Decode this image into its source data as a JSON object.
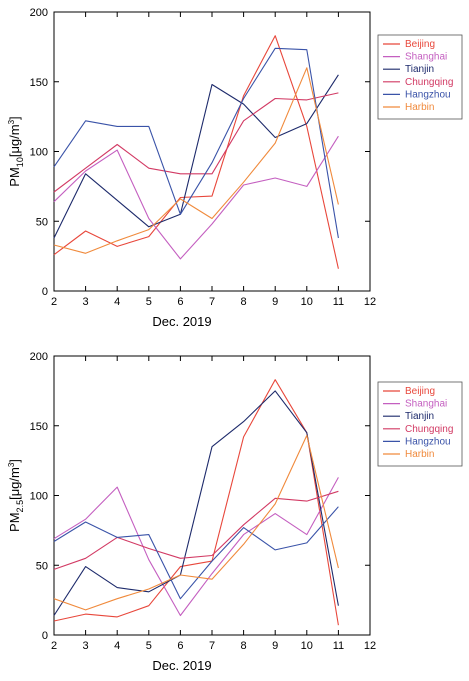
{
  "chart_data": [
    {
      "type": "line",
      "title": "",
      "ylabel_main": "PM",
      "ylabel_sub": "10",
      "ylabel_unit": "[μg/m",
      "ylabel_sup": "3",
      "ylabel_end": "]",
      "xlabel": "Dec. 2019",
      "xlim": [
        2,
        12
      ],
      "ylim": [
        0,
        200
      ],
      "xticks": [
        2,
        3,
        4,
        5,
        6,
        7,
        8,
        9,
        10,
        11,
        12
      ],
      "yticks": [
        0,
        50,
        100,
        150,
        200
      ],
      "grid": false,
      "legend_position": "right",
      "x": [
        2,
        3,
        4,
        5,
        6,
        7,
        8,
        9,
        10,
        11
      ],
      "series": [
        {
          "name": "Beijing",
          "color": "#e8473b",
          "values": [
            26,
            43,
            32,
            39,
            67,
            68,
            140,
            183,
            118,
            16
          ]
        },
        {
          "name": "Shanghai",
          "color": "#c45fc0",
          "values": [
            64,
            86,
            101,
            52,
            23,
            48,
            76,
            81,
            75,
            111
          ]
        },
        {
          "name": "Tianjin",
          "color": "#1d2a6b",
          "values": [
            38,
            84,
            65,
            46,
            55,
            148,
            134,
            110,
            120,
            155
          ]
        },
        {
          "name": "Chungqing",
          "color": "#d23a64",
          "values": [
            71,
            88,
            105,
            88,
            84,
            84,
            122,
            138,
            137,
            142
          ]
        },
        {
          "name": "Hangzhou",
          "color": "#3a53a8",
          "values": [
            89,
            122,
            118,
            118,
            55,
            92,
            138,
            174,
            173,
            38
          ]
        },
        {
          "name": "Harbin",
          "color": "#f08a3c",
          "values": [
            33,
            27,
            36,
            44,
            66,
            52,
            78,
            106,
            160,
            62
          ]
        }
      ]
    },
    {
      "type": "line",
      "title": "",
      "ylabel_main": "PM",
      "ylabel_sub": "2.5",
      "ylabel_unit": "[μg/m",
      "ylabel_sup": "3",
      "ylabel_end": "]",
      "xlabel": "Dec. 2019",
      "xlim": [
        2,
        12
      ],
      "ylim": [
        0,
        200
      ],
      "xticks": [
        2,
        3,
        4,
        5,
        6,
        7,
        8,
        9,
        10,
        11,
        12
      ],
      "yticks": [
        0,
        50,
        100,
        150,
        200
      ],
      "grid": false,
      "legend_position": "right",
      "x": [
        2,
        3,
        4,
        5,
        6,
        7,
        8,
        9,
        10,
        11
      ],
      "series": [
        {
          "name": "Beijing",
          "color": "#e8473b",
          "values": [
            10,
            15,
            13,
            21,
            49,
            53,
            142,
            183,
            145,
            7
          ]
        },
        {
          "name": "Shanghai",
          "color": "#c45fc0",
          "values": [
            69,
            83,
            106,
            54,
            14,
            44,
            72,
            87,
            72,
            113
          ]
        },
        {
          "name": "Tianjin",
          "color": "#1d2a6b",
          "values": [
            14,
            49,
            34,
            31,
            43,
            135,
            153,
            175,
            145,
            21
          ]
        },
        {
          "name": "Chungqing",
          "color": "#d23a64",
          "values": [
            47,
            55,
            70,
            62,
            55,
            57,
            79,
            98,
            96,
            103
          ]
        },
        {
          "name": "Hangzhou",
          "color": "#3a53a8",
          "values": [
            67,
            81,
            70,
            72,
            26,
            53,
            77,
            61,
            66,
            92
          ]
        },
        {
          "name": "Harbin",
          "color": "#f08a3c",
          "values": [
            26,
            18,
            26,
            33,
            43,
            40,
            65,
            94,
            143,
            48
          ]
        }
      ]
    }
  ]
}
